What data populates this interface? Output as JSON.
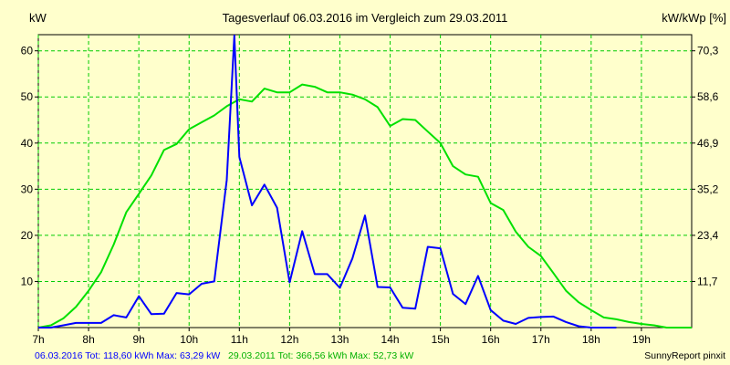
{
  "chart_data": {
    "type": "line",
    "title": "Tagesverlauf 06.03.2016 im Vergleich zum 29.03.2011",
    "ylabel_left": "kW",
    "ylabel_right": "kW/kWp [%]",
    "xlim": [
      7,
      20
    ],
    "ylim": [
      0,
      63.5
    ],
    "grid": true,
    "y_ticks_left": [
      10,
      20,
      30,
      40,
      50,
      60
    ],
    "y_ticks_right": [
      "11,7",
      "23,4",
      "35,2",
      "46,9",
      "58,6",
      "70,3"
    ],
    "x_ticks": [
      "7h",
      "8h",
      "9h",
      "10h",
      "11h",
      "12h",
      "13h",
      "14h",
      "15h",
      "16h",
      "17h",
      "18h",
      "19h"
    ],
    "series": [
      {
        "name": "06.03.2016",
        "color": "#0000ff",
        "x": [
          7.0,
          7.25,
          7.5,
          7.75,
          8.0,
          8.25,
          8.5,
          8.75,
          9.0,
          9.25,
          9.5,
          9.75,
          10.0,
          10.25,
          10.5,
          10.75,
          10.9,
          11.0,
          11.25,
          11.5,
          11.75,
          12.0,
          12.25,
          12.5,
          12.75,
          13.0,
          13.25,
          13.5,
          13.75,
          14.0,
          14.25,
          14.5,
          14.75,
          15.0,
          15.25,
          15.5,
          15.75,
          16.0,
          16.25,
          16.5,
          16.75,
          17.0,
          17.25,
          17.5,
          17.75,
          18.0,
          18.25,
          18.5
        ],
        "y": [
          0,
          0,
          0.5,
          1,
          1,
          1,
          2.7,
          2.2,
          6.8,
          2.9,
          3,
          7.5,
          7.2,
          9.5,
          10,
          32,
          63.3,
          37,
          26.5,
          31,
          26,
          9.8,
          20.9,
          11.6,
          11.6,
          8.6,
          15,
          24.3,
          8.8,
          8.7,
          4.3,
          4.1,
          17.5,
          17.2,
          7.3,
          5.1,
          11.2,
          3.8,
          1.5,
          0.8,
          2.1,
          2.3,
          2.4,
          1.2,
          0.3,
          0,
          0,
          0
        ]
      },
      {
        "name": "29.03.2011",
        "color": "#00e000",
        "x": [
          7.0,
          7.25,
          7.5,
          7.75,
          8.0,
          8.25,
          8.5,
          8.75,
          9.0,
          9.25,
          9.5,
          9.75,
          10.0,
          10.25,
          10.5,
          10.75,
          11.0,
          11.25,
          11.5,
          11.75,
          12.0,
          12.25,
          12.5,
          12.75,
          13.0,
          13.25,
          13.5,
          13.75,
          14.0,
          14.25,
          14.5,
          14.75,
          15.0,
          15.25,
          15.5,
          15.75,
          16.0,
          16.25,
          16.5,
          16.75,
          17.0,
          17.25,
          17.5,
          17.75,
          18.0,
          18.25,
          18.5,
          18.75,
          19.0,
          19.25,
          19.5,
          19.75,
          20.0
        ],
        "y": [
          0,
          0.5,
          2,
          4.5,
          8,
          12,
          18,
          25,
          29,
          33,
          38.5,
          39.8,
          43,
          44.5,
          46,
          48,
          49.5,
          49,
          51.8,
          51,
          51,
          52.7,
          52.2,
          51,
          51,
          50.5,
          49.5,
          47.8,
          43.7,
          45.2,
          45,
          42.5,
          40,
          35,
          33.2,
          32.7,
          27,
          25.5,
          20.8,
          17.5,
          15.5,
          11.8,
          8,
          5.5,
          3.8,
          2.2,
          1.8,
          1.2,
          0.8,
          0.5,
          0,
          0,
          0
        ]
      }
    ],
    "footer_left_series1": "06.03.2016 Tot: 118,60 kWh Max: 63,29 kW",
    "footer_left_series2": "29.03.2011 Tot: 366,56 kWh Max: 52,73 kW",
    "footer_right": "SunnyReport pinxit"
  }
}
